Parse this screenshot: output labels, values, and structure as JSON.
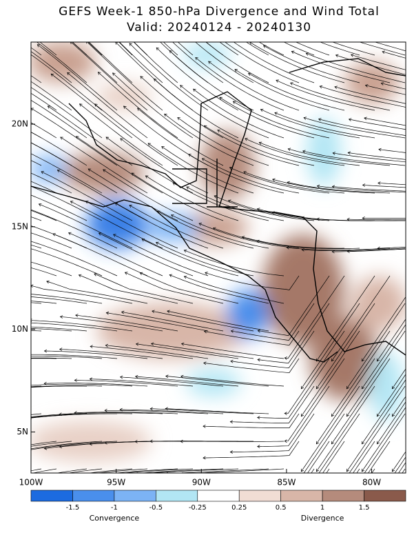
{
  "title": "GEFS Week-1 850-hPa Divergence and Wind Total",
  "subtitle": "Valid: 20240124 - 20240130",
  "map": {
    "xlim": [
      -100,
      -78
    ],
    "ylim": [
      3,
      24
    ],
    "xticks": [
      {
        "value": -100,
        "label": "100W"
      },
      {
        "value": -95,
        "label": "95W"
      },
      {
        "value": -90,
        "label": "90W"
      },
      {
        "value": -85,
        "label": "85W"
      },
      {
        "value": -80,
        "label": "80W"
      }
    ],
    "yticks": [
      {
        "value": 5,
        "label": "5N"
      },
      {
        "value": 10,
        "label": "10N"
      },
      {
        "value": 15,
        "label": "15N"
      },
      {
        "value": 20,
        "label": "20N"
      }
    ]
  },
  "colorbar": {
    "levels": [
      -1.5,
      -1,
      -0.5,
      -0.25,
      0.25,
      0.5,
      1,
      1.5
    ],
    "colors": [
      "#1c6be0",
      "#4a8fec",
      "#7cb3f5",
      "#b2e6f4",
      "#ffffff",
      "#f1ddd4",
      "#d8b6a8",
      "#b58b7c",
      "#8a5a4b"
    ],
    "left_label": "Convergence",
    "right_label": "Divergence"
  }
}
